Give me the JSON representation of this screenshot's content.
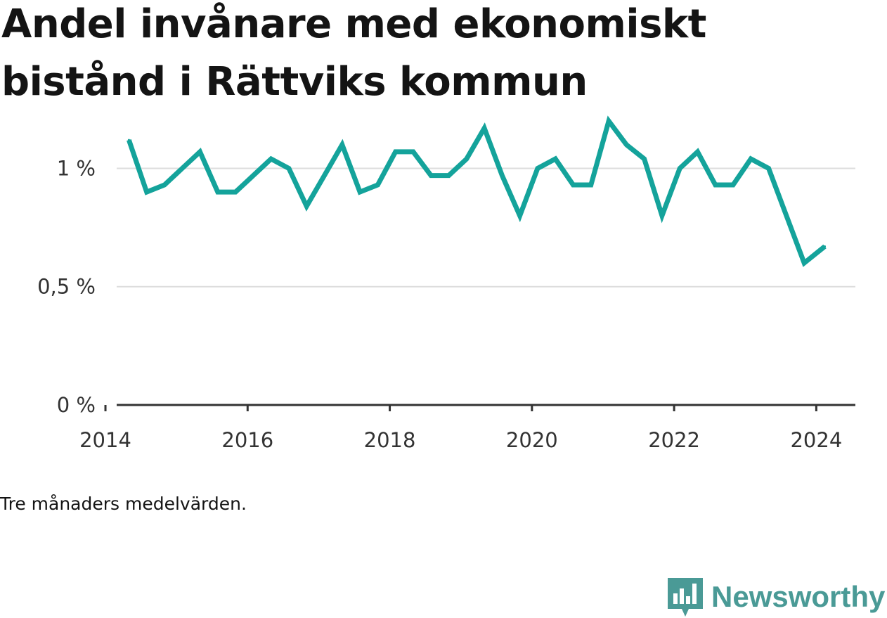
{
  "title": "Andel invånare med ekonomiskt bistånd i Rättviks kommun",
  "caption": "Tre månaders medelvärden.",
  "brand": {
    "name": "Newsworthy",
    "icon": "bar-chart-icon",
    "color": "#4a9a96"
  },
  "colors": {
    "line": "#14a39b",
    "grid": "#dddddd",
    "axis": "#333333"
  },
  "chart_data": {
    "type": "line",
    "title": "Andel invånare med ekonomiskt bistånd i Rättviks kommun",
    "xlabel": "",
    "ylabel": "",
    "xlim": [
      2013.98,
      2024.55
    ],
    "ylim": [
      0,
      1.15
    ],
    "x_ticks": [
      2014,
      2016,
      2018,
      2020,
      2022,
      2024
    ],
    "x_tick_labels": [
      "2014",
      "2016",
      "2018",
      "2020",
      "2022",
      "2024"
    ],
    "y_ticks": [
      0,
      0.5,
      1
    ],
    "y_tick_labels": [
      "0 %",
      "0,5 %",
      "1 %"
    ],
    "grid": "horizontal",
    "series": [
      {
        "x": [
          2014.33,
          2014.58,
          2014.83,
          2015.08,
          2015.33,
          2015.58,
          2015.83,
          2016.08,
          2016.33,
          2016.58,
          2016.83,
          2017.08,
          2017.33,
          2017.58,
          2017.83,
          2018.08,
          2018.33,
          2018.58,
          2018.83,
          2019.08,
          2019.33,
          2019.58,
          2019.83,
          2020.08,
          2020.33,
          2020.58,
          2020.83,
          2021.08,
          2021.33,
          2021.58,
          2021.83,
          2022.08,
          2022.33,
          2022.58,
          2022.83,
          2023.08,
          2023.33,
          2023.58,
          2023.83,
          2024.12
        ],
        "values": [
          1.12,
          0.9,
          0.93,
          1.0,
          1.07,
          0.9,
          0.9,
          0.97,
          1.04,
          1.0,
          0.84,
          0.97,
          1.1,
          0.9,
          0.93,
          1.07,
          1.07,
          0.97,
          0.97,
          1.04,
          1.17,
          0.97,
          0.8,
          1.0,
          1.04,
          0.93,
          0.93,
          1.2,
          1.1,
          1.04,
          0.8,
          1.0,
          1.07,
          0.93,
          0.93,
          1.04,
          1.0,
          0.8,
          0.6,
          0.67
        ]
      }
    ]
  }
}
